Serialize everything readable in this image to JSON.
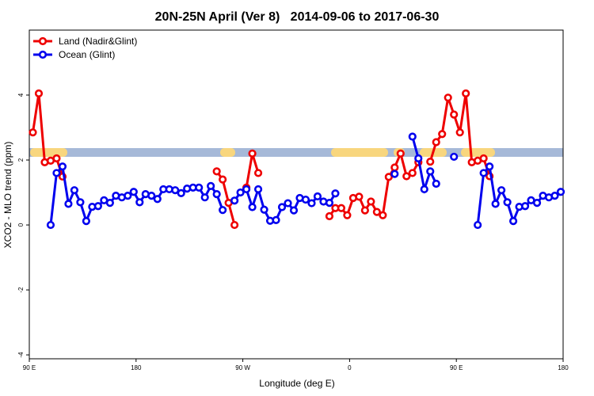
{
  "chart_data": {
    "type": "line",
    "title": "20N-25N April (Ver 8)   2014-09-06 to 2017-06-30",
    "x_label": "Longitude (deg E)",
    "y_label": "XCO2 - MLO trend (ppm)",
    "xlim": [
      90,
      540
    ],
    "xticks": [
      {
        "value": 90,
        "label": "90 E"
      },
      180,
      {
        "value": 270,
        "label": "90 W"
      },
      {
        "value": 360,
        "label": "0"
      },
      {
        "value": 450,
        "label": "90 E"
      },
      {
        "value": 540,
        "label": "180"
      }
    ],
    "ylim": [
      -4.12,
      6
    ],
    "yticks": [
      -4,
      -2,
      0,
      2,
      4
    ],
    "legend": "top-left",
    "series": [
      {
        "name": "Land (Nadir&Glint)",
        "color": "#ee0000",
        "x": [
          93,
          98,
          103,
          108,
          113,
          118,
          123,
          248,
          253,
          258,
          263,
          268,
          273,
          278,
          283,
          288,
          343,
          348,
          353,
          358,
          363,
          368,
          373,
          378,
          383,
          388,
          393,
          398,
          403,
          408,
          413,
          418,
          423,
          428,
          433,
          438,
          443,
          448,
          453,
          458,
          463,
          468,
          473,
          478
        ],
        "values": [
          2.85,
          4.05,
          1.93,
          1.98,
          2.05,
          1.49,
          null,
          1.65,
          1.4,
          0.68,
          0.0,
          null,
          1.15,
          2.2,
          1.6,
          null,
          0.27,
          0.52,
          0.52,
          0.3,
          0.83,
          0.87,
          0.45,
          0.72,
          0.4,
          0.3,
          1.48,
          1.77,
          2.2,
          1.5,
          1.6,
          1.93,
          null,
          1.95,
          2.55,
          2.8,
          3.92,
          3.4,
          2.85,
          4.05,
          1.93,
          1.98,
          2.05,
          1.5
        ]
      },
      {
        "name": "Ocean (Glint)",
        "color": "#0000ee",
        "x": [
          108,
          113,
          118,
          123,
          128,
          133,
          138,
          143,
          148,
          153,
          158,
          163,
          168,
          173,
          178,
          183,
          188,
          193,
          198,
          203,
          208,
          213,
          218,
          223,
          228,
          233,
          238,
          243,
          248,
          253,
          258,
          263,
          268,
          273,
          278,
          283,
          288,
          293,
          298,
          303,
          308,
          313,
          318,
          323,
          328,
          333,
          338,
          343,
          348,
          353,
          398,
          403,
          413,
          418,
          423,
          428,
          433,
          438,
          448,
          453,
          468,
          473,
          478,
          483,
          488,
          493,
          498,
          503,
          508,
          513,
          518,
          523,
          528,
          533,
          538
        ],
        "values": [
          0.0,
          1.6,
          1.8,
          0.65,
          1.07,
          0.7,
          0.12,
          0.56,
          0.58,
          0.76,
          0.68,
          0.9,
          0.85,
          0.9,
          1.02,
          0.7,
          0.95,
          0.9,
          0.8,
          1.1,
          1.1,
          1.07,
          0.98,
          1.12,
          1.15,
          1.15,
          0.85,
          1.2,
          0.95,
          0.46,
          null,
          0.75,
          1.0,
          1.1,
          0.55,
          1.1,
          0.47,
          0.13,
          0.15,
          0.55,
          0.67,
          0.45,
          0.83,
          0.78,
          0.67,
          0.88,
          0.72,
          0.68,
          0.97,
          null,
          1.57,
          null,
          2.72,
          2.05,
          1.1,
          1.65,
          1.27,
          null,
          2.1,
          null,
          0.0,
          1.6,
          1.8,
          0.65,
          1.07,
          0.7,
          0.12,
          0.56,
          0.58,
          0.76,
          0.68,
          0.9,
          0.85,
          0.9,
          1.02
        ]
      }
    ]
  }
}
